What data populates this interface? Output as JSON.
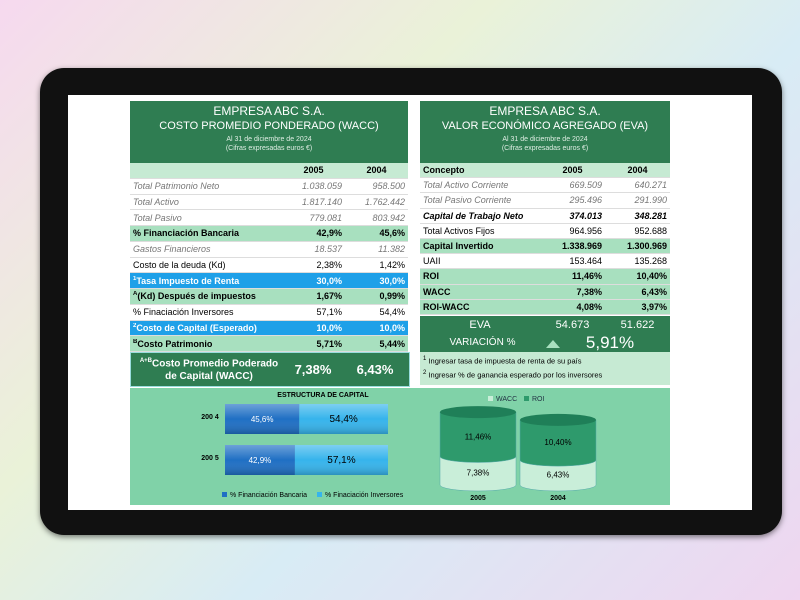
{
  "wacc": {
    "company": "EMPRESA  ABC S.A.",
    "title": "COSTO PROMEDIO PONDERADO (WACC)",
    "date": "Al 31 de diciembre de 2024",
    "note": "(Cifras expresadas euros €)",
    "columns": [
      "",
      "2005",
      "2004"
    ],
    "rows": [
      {
        "label": "Total Patrimonio Neto",
        "values": [
          "1.038.059",
          "958.500"
        ]
      },
      {
        "label": "Total Activo",
        "values": [
          "1.817.140",
          "1.762.442"
        ]
      },
      {
        "label": "Total Pasivo",
        "values": [
          "779.081",
          "803.942"
        ]
      },
      {
        "label": "% Financiación Bancaria",
        "values": [
          "42,9%",
          "45,6%"
        ]
      },
      {
        "label": "Gastos Financieros",
        "values": [
          "18.537",
          "11.382"
        ]
      },
      {
        "label": "Costo de la deuda (Kd)",
        "values": [
          "2,38%",
          "1,42%"
        ]
      },
      {
        "mark": "1",
        "label": "Tasa Impuesto de Renta",
        "values": [
          "30,0%",
          "30,0%"
        ]
      },
      {
        "mark": "A",
        "label": "(Kd) Después de impuestos",
        "values": [
          "1,67%",
          "0,99%"
        ]
      },
      {
        "label": "% Finaciación Inversores",
        "values": [
          "57,1%",
          "54,4%"
        ]
      },
      {
        "mark": "2",
        "label": "Costo de Capital (Esperado)",
        "values": [
          "10,0%",
          "10,0%"
        ]
      },
      {
        "mark": "B",
        "label": "Costo Patrimonio",
        "values": [
          "5,71%",
          "5,44%"
        ]
      }
    ],
    "total": {
      "mark": "A+B",
      "label": "Costo Promedio Poderado de Capital (WACC)",
      "values": [
        "7,38%",
        "6,43%"
      ]
    }
  },
  "eva": {
    "company": "EMPRESA  ABC S.A.",
    "title": "VALOR ECONÓMICO AGREGADO (EVA)",
    "date": "Al 31 de diciembre de 2024",
    "note": "(Cifras expresadas euros €)",
    "columns": [
      "Concepto",
      "2005",
      "2004"
    ],
    "rows": [
      {
        "label": "Total Activo Corriente",
        "values": [
          "669.509",
          "640.271"
        ]
      },
      {
        "label": "Total Pasivo Corriente",
        "values": [
          "295.496",
          "291.990"
        ]
      },
      {
        "label": "Capital de Trabajo Neto",
        "values": [
          "374.013",
          "348.281"
        ]
      },
      {
        "label": "Total Activos Fijos",
        "values": [
          "964.956",
          "952.688"
        ]
      },
      {
        "label": "Capital Invertido",
        "values": [
          "1.338.969",
          "1.300.969"
        ]
      },
      {
        "label": "UAII",
        "values": [
          "153.464",
          "135.268"
        ]
      },
      {
        "label": "ROI",
        "values": [
          "11,46%",
          "10,40%"
        ]
      },
      {
        "label": "WACC",
        "values": [
          "7,38%",
          "6,43%"
        ]
      },
      {
        "label": "ROI-WACC",
        "values": [
          "4,08%",
          "3,97%"
        ]
      }
    ],
    "eva_row": {
      "label": "EVA",
      "values": [
        "54.673",
        "51.622"
      ]
    },
    "variation": {
      "label": "VARIACIÓN %",
      "value": "5,91%"
    },
    "notes": [
      {
        "mark": "1",
        "text": "Ingresar tasa de impuesta de renta de su país"
      },
      {
        "mark": "2",
        "text": "Ingresar % de ganancia esperado por los inversores"
      }
    ]
  },
  "capital_chart": {
    "title": "ESTRUCTURA DE CAPITAL",
    "categories": [
      "200 4",
      "200 5"
    ],
    "series": [
      {
        "name": "% Financiación Bancaria",
        "color": "#1f6fc4",
        "values": [
          45.6,
          42.9
        ],
        "value_labels": [
          "45,6%",
          "42,9%"
        ]
      },
      {
        "name": "% Finaciación Inversores",
        "color": "#36b4ec",
        "values": [
          54.4,
          57.1
        ],
        "value_labels": [
          "54,4%",
          "57,1%"
        ]
      }
    ]
  },
  "return_chart": {
    "categories": [
      "2005",
      "2004"
    ],
    "series": [
      {
        "name": "WACC",
        "color": "#c9eed9",
        "values": [
          7.38,
          6.43
        ],
        "value_labels": [
          "7,38%",
          "6,43%"
        ]
      },
      {
        "name": "ROI",
        "color": "#2e9a6c",
        "values": [
          11.46,
          10.4
        ],
        "value_labels": [
          "11,46%",
          "10,40%"
        ]
      }
    ]
  }
}
